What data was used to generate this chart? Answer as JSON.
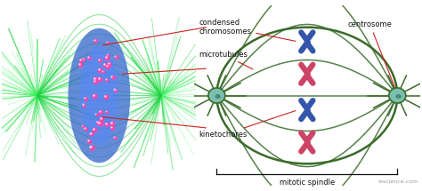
{
  "bg_color": "#ffffff",
  "diagram_bg": "#ffffff",
  "photo_bg": "#000000",
  "spindle_color": "#3a6b2a",
  "chromosome_blue": "#3355aa",
  "chromosome_pink": "#cc4466",
  "centrosome_fill": "#7abfb0",
  "centrosome_border": "#3a6b2a",
  "annotation_line_color": "#cc2222",
  "text_color": "#111111",
  "watermark_color": "#999999",
  "labels": {
    "condensed_chromosomes": "condensed\nchromosomes",
    "microtubules": "microtubules",
    "kinetochores": "kinetochores",
    "centrosome": "centrosome",
    "mitotic_spindle": "mitotic spindle",
    "watermark": "rsscience.com"
  }
}
